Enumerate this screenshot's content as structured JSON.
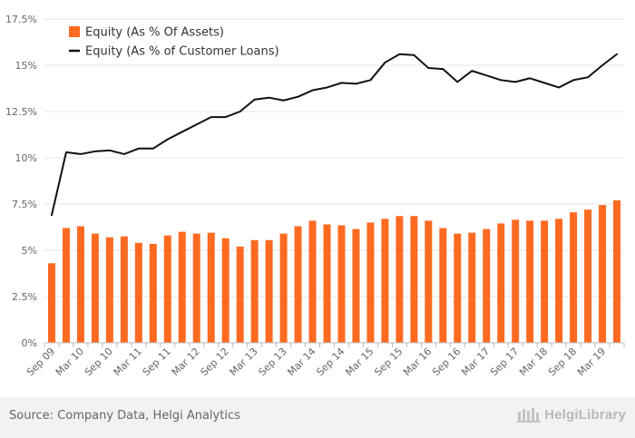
{
  "chart_data": {
    "type": "bar",
    "categories": [
      "Sep 09",
      "Dec 09",
      "Mar 10",
      "Jun 10",
      "Sep 10",
      "Dec 10",
      "Mar 11",
      "Jun 11",
      "Sep 11",
      "Dec 11",
      "Mar 12",
      "Jun 12",
      "Sep 12",
      "Dec 12",
      "Mar 13",
      "Jun 13",
      "Sep 13",
      "Dec 13",
      "Mar 14",
      "Jun 14",
      "Sep 14",
      "Dec 14",
      "Mar 15",
      "Jun 15",
      "Sep 15",
      "Dec 15",
      "Mar 16",
      "Jun 16",
      "Sep 16",
      "Dec 16",
      "Mar 17",
      "Jun 17",
      "Sep 17",
      "Dec 17",
      "Mar 18",
      "Jun 18",
      "Sep 18",
      "Dec 18",
      "Mar 19",
      "Jun 19"
    ],
    "tick_labels": [
      "Sep 09",
      "Mar 10",
      "Sep 10",
      "Mar 11",
      "Sep 11",
      "Mar 12",
      "Sep 12",
      "Mar 13",
      "Sep 13",
      "Mar 14",
      "Sep 14",
      "Mar 15",
      "Sep 15",
      "Mar 16",
      "Sep 16",
      "Mar 17",
      "Sep 17",
      "Mar 18",
      "Sep 18",
      "Mar 19"
    ],
    "series": [
      {
        "name": "Equity (As % Of Assets)",
        "type": "bar",
        "color": "#ff6a21",
        "values": [
          4.3,
          6.2,
          6.3,
          5.9,
          5.7,
          5.75,
          5.4,
          5.35,
          5.8,
          6.0,
          5.9,
          5.95,
          5.65,
          5.2,
          5.55,
          5.55,
          5.9,
          6.3,
          6.6,
          6.4,
          6.35,
          6.15,
          6.5,
          6.7,
          6.85,
          6.85,
          6.6,
          6.2,
          5.9,
          5.95,
          6.15,
          6.45,
          6.65,
          6.6,
          6.6,
          6.7,
          7.05,
          7.2,
          7.45,
          7.7
        ]
      },
      {
        "name": "Equity (As % of Customer Loans)",
        "type": "line",
        "color": "#111111",
        "values": [
          6.9,
          10.3,
          10.2,
          10.35,
          10.4,
          10.2,
          10.5,
          10.5,
          11.0,
          11.4,
          11.8,
          12.2,
          12.2,
          12.5,
          13.15,
          13.25,
          13.1,
          13.3,
          13.65,
          13.8,
          14.05,
          14.0,
          14.2,
          15.15,
          15.6,
          15.55,
          14.85,
          14.8,
          14.1,
          14.7,
          14.45,
          14.2,
          14.1,
          14.3,
          14.05,
          13.8,
          14.2,
          14.35,
          15.0,
          15.6
        ]
      }
    ],
    "y_ticks": [
      "0%",
      "2.5%",
      "5%",
      "7.5%",
      "10%",
      "12.5%",
      "15%",
      "17.5%"
    ],
    "ylim": [
      0,
      17.5
    ],
    "legend_position": "top-left",
    "grid": true
  },
  "footer": {
    "source": "Source: Company Data, Helgi Analytics",
    "logo_text": "HelgiLibrary"
  }
}
